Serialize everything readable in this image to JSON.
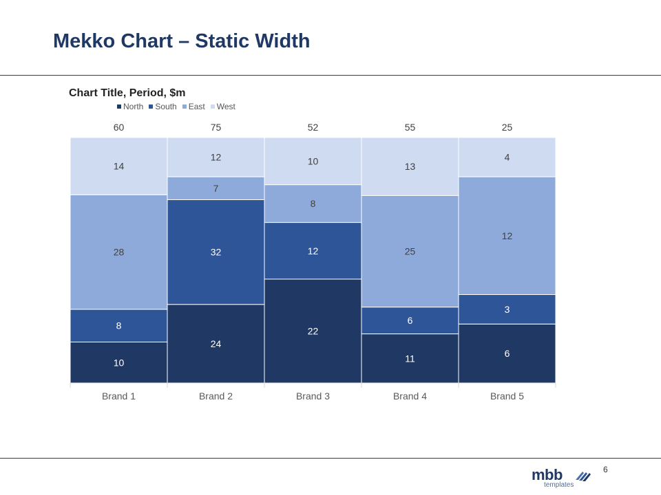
{
  "slide": {
    "title": "Mekko Chart – Static Width",
    "page_number": "6"
  },
  "logo": {
    "word": "mbb",
    "sub": "templates"
  },
  "chart_data": {
    "type": "bar",
    "subtype": "mekko-stacked",
    "title": "Chart Title, Period, $m",
    "categories": [
      "Brand 1",
      "Brand 2",
      "Brand 3",
      "Brand 4",
      "Brand 5"
    ],
    "totals": [
      60,
      75,
      52,
      55,
      25
    ],
    "series": [
      {
        "name": "North",
        "color": "#1f3864",
        "values": [
          10,
          24,
          22,
          11,
          6
        ]
      },
      {
        "name": "South",
        "color": "#2e5597",
        "values": [
          8,
          32,
          12,
          6,
          3
        ]
      },
      {
        "name": "East",
        "color": "#8eaadb",
        "values": [
          28,
          7,
          8,
          25,
          12
        ]
      },
      {
        "name": "West",
        "color": "#cfdbf0",
        "values": [
          14,
          12,
          10,
          13,
          4
        ]
      }
    ],
    "ylim": [
      0,
      100
    ],
    "legend_position": "top-left",
    "grid": false
  }
}
